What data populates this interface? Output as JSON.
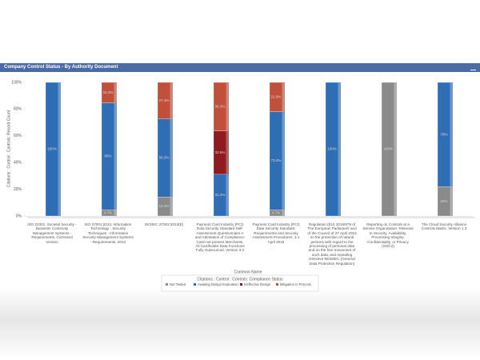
{
  "header": {
    "title": "Company Control Status - By Authority Document"
  },
  "chart_data": {
    "type": "stacked_bar",
    "y_label": "Citations : Control : Controls: Record Count",
    "x_label": "Common Name",
    "legend_title": "Citations : Control : Controls: Compliance Status",
    "categories": [
      "ISO 22301: Societal Security - Business Continuity Management Systems - Requirements, Corrected Version",
      "ISO 27001:2013, Information Technology - Security Techniques - Information Security Management Systems - Requirements, 2013",
      "ISO/IEC 27002:2013(E)",
      "Payment Card Industry (PCI) Data Security Standard Self-Assessment Questionnaire A and Attestation of Compliance: Card-not-present Merchants, All Cardholder Data Functions Fully Outsourced, Version 3.2",
      "Payment Card Industry (PCI) Data Security Standard, Requirements and Security Assessment Procedures, 3.1 April 2015",
      "Regulation (EU) 2016/679 of The European Parliament and of the Council of 27 April 2016 on the protection of natural persons with regard to the processing of personal data and on the free movement of such data, and repealing Directive 95/46/EC (General Data Protection Regulation)",
      "Reporting on Controls at a Service Organization: Relevant to Security, Availability, Processing Integrity, Confidentiality, or Privacy (SOC2)",
      "The Cloud Security Alliance Controls Matrix, Version 1.3"
    ],
    "series": [
      {
        "name": "Not Tested",
        "color": "#8a8a8a",
        "values": [
          null,
          4.7,
          14.3,
          null,
          4.7,
          null,
          100,
          22
        ],
        "value_labels": [
          null,
          "4.7%",
          "14.3%",
          null,
          "4.7%",
          null,
          "100%",
          "22%"
        ]
      },
      {
        "name": "Awaiting Design Evaluation",
        "color": "#2f6db5",
        "values": [
          100,
          80,
          58.3,
          31.2,
          73.4,
          100,
          null,
          78
        ],
        "value_labels": [
          "100%",
          "80%",
          "58.3%",
          "31.2%",
          "73.4%",
          "100%",
          null,
          "78%"
        ]
      },
      {
        "name": "Ineffective Design",
        "color": "#8e1b1f",
        "values": [
          null,
          null,
          null,
          32.5,
          null,
          null,
          null,
          null
        ],
        "value_labels": [
          null,
          null,
          null,
          "32.5%",
          null,
          null,
          null,
          null
        ]
      },
      {
        "name": "Mitigation In Process",
        "color": "#c0503c",
        "values": [
          null,
          15.3,
          27.4,
          36.3,
          21.9,
          null,
          null,
          null
        ],
        "value_labels": [
          null,
          "15.3%",
          "27.4%",
          "36.3%",
          "21.9%",
          null,
          null,
          null
        ]
      }
    ],
    "ylim": [
      0,
      100
    ],
    "yticks": [
      {
        "value": 0,
        "label": "0%"
      },
      {
        "value": 20,
        "label": "20%"
      },
      {
        "value": 40,
        "label": "40%"
      },
      {
        "value": 60,
        "label": "60%"
      },
      {
        "value": 80,
        "label": "80%"
      },
      {
        "value": 100,
        "label": "100%"
      }
    ],
    "grid": false
  }
}
